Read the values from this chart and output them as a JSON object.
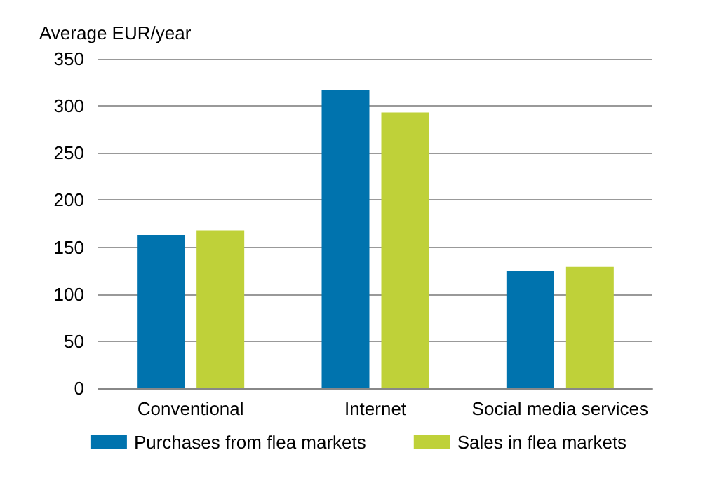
{
  "chart_data": {
    "type": "bar",
    "ylabel": "Average EUR/year",
    "categories": [
      "Conventional",
      "Internet",
      "Social media services"
    ],
    "series": [
      {
        "name": "Purchases from flea markets",
        "color": "#0073ae",
        "values": [
          163,
          317,
          125
        ]
      },
      {
        "name": "Sales in flea markets",
        "color": "#bfd139",
        "values": [
          168,
          293,
          129
        ]
      }
    ],
    "ylim": [
      0,
      350
    ],
    "yticks": [
      0,
      50,
      100,
      150,
      200,
      250,
      300,
      350
    ],
    "grid": "y",
    "legend": "bottom"
  }
}
